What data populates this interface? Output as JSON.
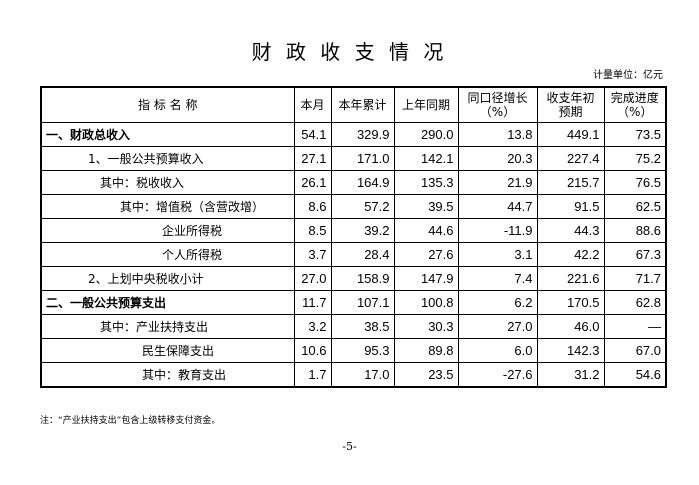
{
  "title": "财 政 收 支 情 况",
  "unit": "计量单位：亿元",
  "table": {
    "header": [
      [
        "指 标 名 称"
      ],
      [
        "本月"
      ],
      [
        "本年累计"
      ],
      [
        "上年同期"
      ],
      [
        "同口径增长",
        "（%）"
      ],
      [
        "收支年初",
        "预期"
      ],
      [
        "完成进度",
        "（%）"
      ]
    ],
    "rows": [
      [
        "一、财政总收入",
        "54.1",
        "329.9",
        "290.0",
        "13.8",
        "449.1",
        "73.5"
      ],
      [
        "1、一般公共预算收入",
        "27.1",
        "171.0",
        "142.1",
        "20.3",
        "227.4",
        "75.2"
      ],
      [
        "其中：税收收入",
        "26.1",
        "164.9",
        "135.3",
        "21.9",
        "215.7",
        "76.5"
      ],
      [
        "其中：增值税（含营改增）",
        "8.6",
        "57.2",
        "39.5",
        "44.7",
        "91.5",
        "62.5"
      ],
      [
        "企业所得税",
        "8.5",
        "39.2",
        "44.6",
        "-11.9",
        "44.3",
        "88.6"
      ],
      [
        "个人所得税",
        "3.7",
        "28.4",
        "27.6",
        "3.1",
        "42.2",
        "67.3"
      ],
      [
        "2、上划中央税收小计",
        "27.0",
        "158.9",
        "147.9",
        "7.4",
        "221.6",
        "71.7"
      ],
      [
        "二、一般公共预算支出",
        "11.7",
        "107.1",
        "100.8",
        "6.2",
        "170.5",
        "62.8"
      ],
      [
        "其中：产业扶持支出",
        "3.2",
        "38.5",
        "30.3",
        "27.0",
        "46.0",
        "—"
      ],
      [
        "民生保障支出",
        "10.6",
        "95.3",
        "89.8",
        "6.0",
        "142.3",
        "67.0"
      ],
      [
        "其中：教育支出",
        "1.7",
        "17.0",
        "23.5",
        "-27.6",
        "31.2",
        "54.6"
      ]
    ]
  },
  "footnote": "注：“产业扶持支出”包含上级转移支付资金。",
  "page_number": "-5-"
}
